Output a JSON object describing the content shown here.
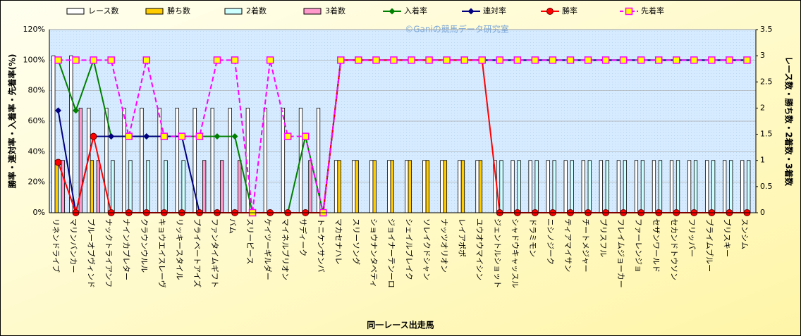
{
  "chart_data": {
    "type": "bar-line",
    "watermark": "©Ganiの競馬データ研究室",
    "x_label": "同一レース出走馬",
    "y_label": "勝率・連対率・入着率・先着率(%)",
    "y2_label": "レース数・勝ち数・2着数・3着数",
    "categories": [
      "リネンドライブ",
      "マリンバンカー",
      "ブルーオブヴィンド",
      "ナックトライアンフ",
      "ナインカプレター",
      "クラウンウルル",
      "キョウエイスレーヴ",
      "リッキースタイル",
      "プライベートアイズ",
      "ファンタイムギフト",
      "バム",
      "スリーピース",
      "ケイツーギルダー",
      "マイネルブリオン",
      "サディーク",
      "トニケンサンバ",
      "マカセナハレ",
      "スリーソング",
      "ショウナンタベティ",
      "ジョイナーテンーロ",
      "シェイルブレイク",
      "ソレイクドシャン",
      "ナッツオリオン",
      "レイアポポ",
      "ユウオウマイシン",
      "ジェントルショット",
      "シャドウキャッスル",
      "ドラミモン",
      "ニシノジーク",
      "ティアマイサン",
      "チートメジャー",
      "ブリスフル",
      "フレイムジョーカー",
      "ファーレンジョ",
      "セザンワールド",
      "セカンドトウソン",
      "フリッパー",
      "ブライムブルー",
      "ブリスキー",
      "スンシム"
    ],
    "ylim": [
      0,
      120
    ],
    "yticks": [
      {
        "value": 0,
        "label": "0%"
      },
      {
        "value": 20,
        "label": "20%"
      },
      {
        "value": 40,
        "label": "40%"
      },
      {
        "value": 60,
        "label": "60%"
      },
      {
        "value": 80,
        "label": "80%"
      },
      {
        "value": 100,
        "label": "100%"
      },
      {
        "value": 120,
        "label": "120%"
      }
    ],
    "y2lim": [
      0,
      3.5
    ],
    "y2ticks": [
      0,
      0.5,
      1,
      1.5,
      2,
      2.5,
      3,
      3.5
    ],
    "grid": true,
    "series": [
      {
        "name": "レース数",
        "kind": "bar",
        "axis": "y2",
        "color": "#ffffff",
        "values": [
          3,
          3,
          2,
          2,
          2,
          2,
          2,
          2,
          2,
          2,
          2,
          2,
          2,
          2,
          2,
          2,
          1,
          1,
          1,
          1,
          1,
          1,
          1,
          1,
          1,
          1,
          1,
          1,
          1,
          1,
          1,
          1,
          1,
          1,
          1,
          1,
          1,
          1,
          1,
          1
        ]
      },
      {
        "name": "勝ち数",
        "kind": "bar",
        "axis": "y2",
        "color": "#ffcc00",
        "values": [
          1,
          0,
          1,
          0,
          0,
          0,
          0,
          0,
          0,
          0,
          0,
          0,
          0,
          0,
          0,
          0,
          1,
          1,
          1,
          1,
          1,
          1,
          1,
          1,
          1,
          0,
          0,
          0,
          0,
          0,
          0,
          0,
          0,
          0,
          0,
          0,
          0,
          0,
          0,
          0
        ]
      },
      {
        "name": "2着数",
        "kind": "bar",
        "axis": "y2",
        "color": "#ccffff",
        "values": [
          1,
          0,
          0,
          1,
          1,
          1,
          1,
          1,
          0,
          0,
          0,
          0,
          0,
          0,
          0,
          0,
          0,
          0,
          0,
          0,
          0,
          0,
          0,
          0,
          0,
          1,
          1,
          1,
          1,
          1,
          1,
          1,
          1,
          1,
          1,
          1,
          1,
          1,
          1,
          1
        ]
      },
      {
        "name": "3着数",
        "kind": "bar",
        "axis": "y2",
        "color": "#ff99cc",
        "values": [
          1,
          2,
          1,
          0,
          0,
          0,
          0,
          0,
          1,
          1,
          1,
          0,
          0,
          0,
          1,
          0,
          0,
          0,
          0,
          0,
          0,
          0,
          0,
          0,
          0,
          0,
          0,
          0,
          0,
          0,
          0,
          0,
          0,
          0,
          0,
          0,
          0,
          0,
          0,
          0
        ]
      },
      {
        "name": "入着率",
        "kind": "line",
        "color": "#008000",
        "marker": "diamond",
        "dashed": false,
        "values": [
          100,
          67,
          100,
          50,
          50,
          50,
          50,
          50,
          50,
          50,
          50,
          0,
          0,
          0,
          50,
          0,
          100,
          100,
          100,
          100,
          100,
          100,
          100,
          100,
          100,
          100,
          100,
          100,
          100,
          100,
          100,
          100,
          100,
          100,
          100,
          100,
          100,
          100,
          100,
          100
        ]
      },
      {
        "name": "連対率",
        "kind": "line",
        "color": "#000080",
        "marker": "diamond",
        "dashed": false,
        "values": [
          67,
          0,
          50,
          50,
          50,
          50,
          50,
          50,
          0,
          0,
          0,
          0,
          0,
          0,
          0,
          0,
          100,
          100,
          100,
          100,
          100,
          100,
          100,
          100,
          100,
          100,
          100,
          100,
          100,
          100,
          100,
          100,
          100,
          100,
          100,
          100,
          100,
          100,
          100,
          100
        ]
      },
      {
        "name": "勝率",
        "kind": "line",
        "color": "#ff0000",
        "marker": "circle",
        "dashed": false,
        "values": [
          33,
          0,
          50,
          0,
          0,
          0,
          0,
          0,
          0,
          0,
          0,
          0,
          0,
          0,
          0,
          0,
          100,
          100,
          100,
          100,
          100,
          100,
          100,
          100,
          100,
          0,
          0,
          0,
          0,
          0,
          0,
          0,
          0,
          0,
          0,
          0,
          0,
          0,
          0,
          0
        ]
      },
      {
        "name": "先着率",
        "kind": "line",
        "color": "#ff00ff",
        "marker": "square",
        "dashed": true,
        "values": [
          100,
          100,
          100,
          100,
          50,
          100,
          50,
          50,
          50,
          100,
          100,
          0,
          100,
          50,
          50,
          0,
          100,
          100,
          100,
          100,
          100,
          100,
          100,
          100,
          100,
          100,
          100,
          100,
          100,
          100,
          100,
          100,
          100,
          100,
          100,
          100,
          100,
          100,
          100,
          100
        ]
      }
    ]
  }
}
